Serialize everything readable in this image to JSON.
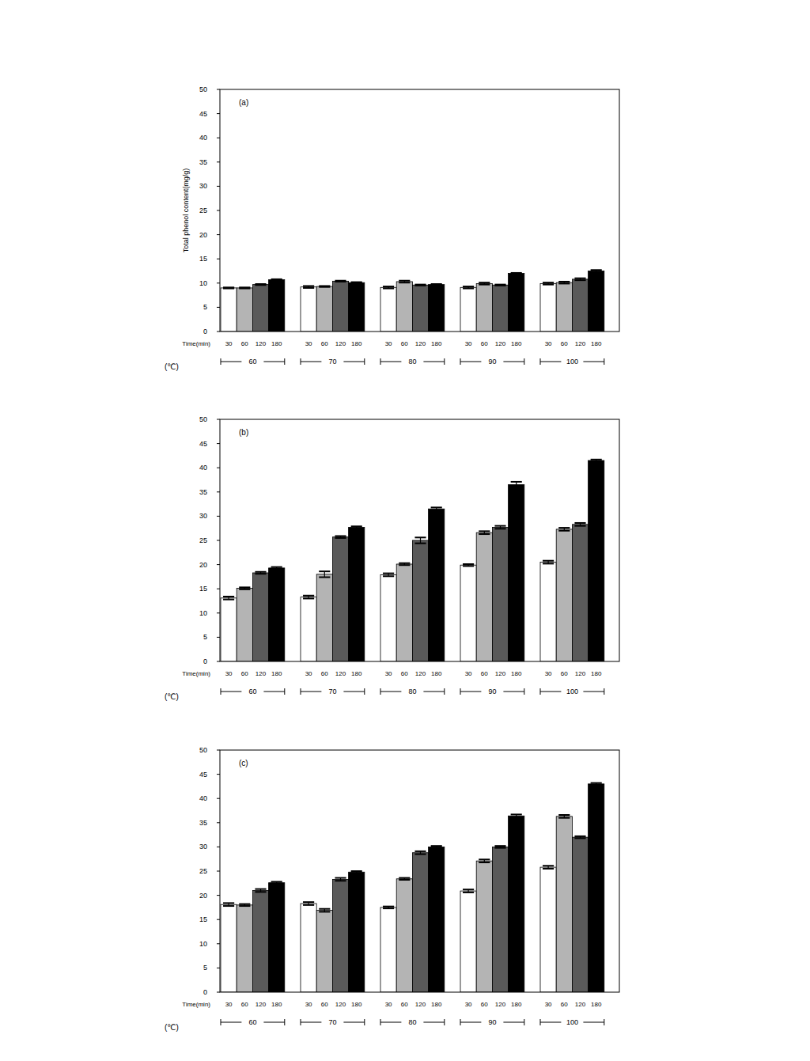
{
  "chart_data": [
    {
      "type": "bar",
      "title": "(a)",
      "y_label": "Total phenol content(mg/g)",
      "series_label": "Time(min)",
      "x_label": "(℃)",
      "categories": [
        "60",
        "70",
        "80",
        "90",
        "100"
      ],
      "ylim": [
        0,
        50
      ],
      "yticks": [
        0,
        5,
        10,
        15,
        20,
        25,
        30,
        35,
        40,
        45,
        50
      ],
      "grid": false,
      "series": [
        {
          "name": "30",
          "color": "#ffffff",
          "values": [
            9.0,
            9.2,
            9.1,
            9.1,
            9.9
          ],
          "errors": [
            0.1,
            0.2,
            0.2,
            0.2,
            0.2
          ]
        },
        {
          "name": "60",
          "color": "#b4b4b4",
          "values": [
            9.0,
            9.3,
            10.3,
            9.9,
            10.1
          ],
          "errors": [
            0.1,
            0.1,
            0.2,
            0.2,
            0.2
          ]
        },
        {
          "name": "120",
          "color": "#5a5a5a",
          "values": [
            9.7,
            10.4,
            9.6,
            9.6,
            10.8
          ],
          "errors": [
            0.1,
            0.1,
            0.1,
            0.1,
            0.2
          ]
        },
        {
          "name": "180",
          "color": "#000000",
          "values": [
            10.7,
            10.1,
            9.7,
            12.0,
            12.5
          ],
          "errors": [
            0.1,
            0.1,
            0.1,
            0.1,
            0.2
          ]
        }
      ]
    },
    {
      "type": "bar",
      "title": "(b)",
      "series_label": "Time(min)",
      "x_label": "(℃)",
      "categories": [
        "60",
        "70",
        "80",
        "90",
        "100"
      ],
      "ylim": [
        0,
        50
      ],
      "yticks": [
        0,
        5,
        10,
        15,
        20,
        25,
        30,
        35,
        40,
        45,
        50
      ],
      "grid": false,
      "series": [
        {
          "name": "30",
          "color": "#ffffff",
          "values": [
            13.1,
            13.3,
            17.9,
            19.9,
            20.5
          ],
          "errors": [
            0.3,
            0.3,
            0.3,
            0.2,
            0.3
          ]
        },
        {
          "name": "60",
          "color": "#b4b4b4",
          "values": [
            15.1,
            18.0,
            20.1,
            26.6,
            27.3
          ],
          "errors": [
            0.2,
            0.6,
            0.2,
            0.3,
            0.3
          ]
        },
        {
          "name": "120",
          "color": "#5a5a5a",
          "values": [
            18.3,
            25.7,
            25.0,
            27.7,
            28.3
          ],
          "errors": [
            0.2,
            0.2,
            0.6,
            0.3,
            0.3
          ]
        },
        {
          "name": "180",
          "color": "#000000",
          "values": [
            19.3,
            27.7,
            31.5,
            36.5,
            41.5
          ],
          "errors": [
            0.2,
            0.2,
            0.3,
            0.6,
            0.2
          ]
        }
      ]
    },
    {
      "type": "bar",
      "title": "(c)",
      "series_label": "Time(min)",
      "x_label": "(℃)",
      "categories": [
        "60",
        "70",
        "80",
        "90",
        "100"
      ],
      "ylim": [
        0,
        50
      ],
      "yticks": [
        0,
        5,
        10,
        15,
        20,
        25,
        30,
        35,
        40,
        45,
        50
      ],
      "grid": false,
      "series": [
        {
          "name": "30",
          "color": "#ffffff",
          "values": [
            18.1,
            18.3,
            17.5,
            20.9,
            25.8
          ],
          "errors": [
            0.3,
            0.3,
            0.2,
            0.3,
            0.3
          ]
        },
        {
          "name": "60",
          "color": "#b4b4b4",
          "values": [
            18.0,
            16.9,
            23.4,
            27.1,
            36.3
          ],
          "errors": [
            0.2,
            0.3,
            0.2,
            0.3,
            0.3
          ]
        },
        {
          "name": "120",
          "color": "#5a5a5a",
          "values": [
            21.0,
            23.3,
            28.8,
            30.0,
            32.0
          ],
          "errors": [
            0.3,
            0.3,
            0.3,
            0.2,
            0.2
          ]
        },
        {
          "name": "180",
          "color": "#000000",
          "values": [
            22.6,
            24.8,
            30.0,
            36.4,
            43.0
          ],
          "errors": [
            0.2,
            0.2,
            0.2,
            0.3,
            0.2
          ]
        }
      ]
    }
  ]
}
